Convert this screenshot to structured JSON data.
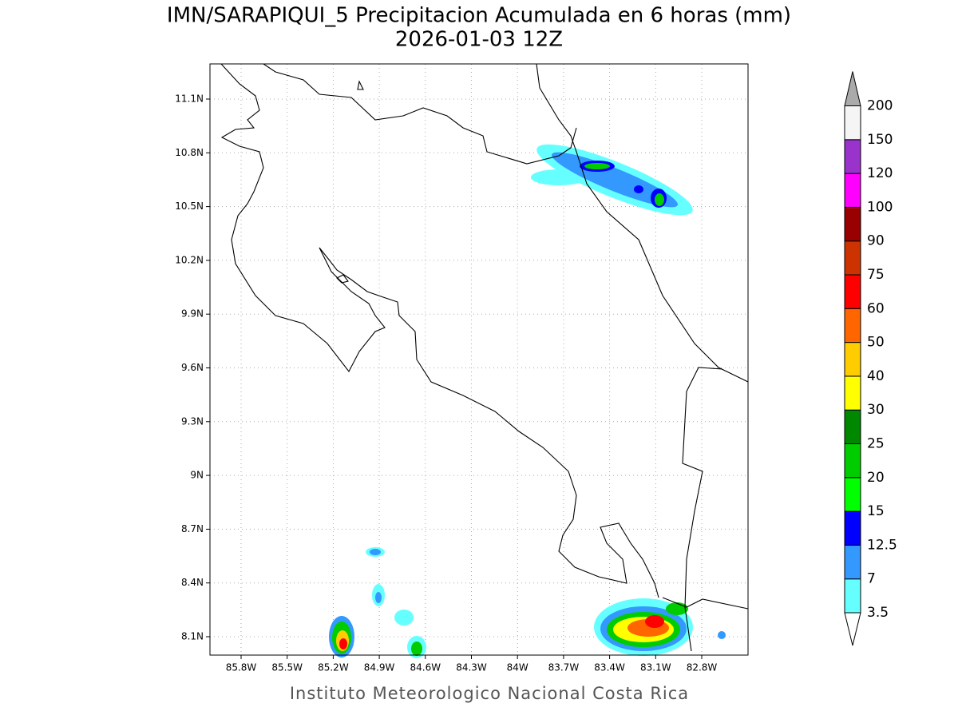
{
  "title": "IMN/SARAPIQUI_5 Precipitacion Acumulada en 6 horas (mm)",
  "subtitle": "2026-01-03 12Z",
  "lat_labels": [
    "11.1N",
    "10.8N",
    "10.5N",
    "10.2N",
    "9.9N",
    "9.6N",
    "9.3N",
    "9N",
    "8.7N",
    "8.4N",
    "8.1N"
  ],
  "lon_labels": [
    "85.8W",
    "85.5W",
    "85.2W",
    "84.9W",
    "84.6W",
    "84.3W",
    "84W",
    "83.7W",
    "83.4W",
    "83.1W",
    "82.8W"
  ],
  "colorbar": {
    "labels": [
      "3.5",
      "7",
      "12.5",
      "15",
      "20",
      "25",
      "30",
      "40",
      "50",
      "60",
      "75",
      "90",
      "100",
      "120",
      "150",
      "200"
    ],
    "colors": [
      "#ffffff",
      "#66ffff",
      "#3399ff",
      "#0000ff",
      "#00ff00",
      "#00cc00",
      "#008800",
      "#ffff00",
      "#ffcc00",
      "#ff6600",
      "#ff0000",
      "#cc3300",
      "#990000",
      "#ff00ff",
      "#9933cc",
      "#f5f5f5",
      "#aaaaaa"
    ]
  },
  "footer": "Instituto Meteorologico Nacional Costa Rica"
}
